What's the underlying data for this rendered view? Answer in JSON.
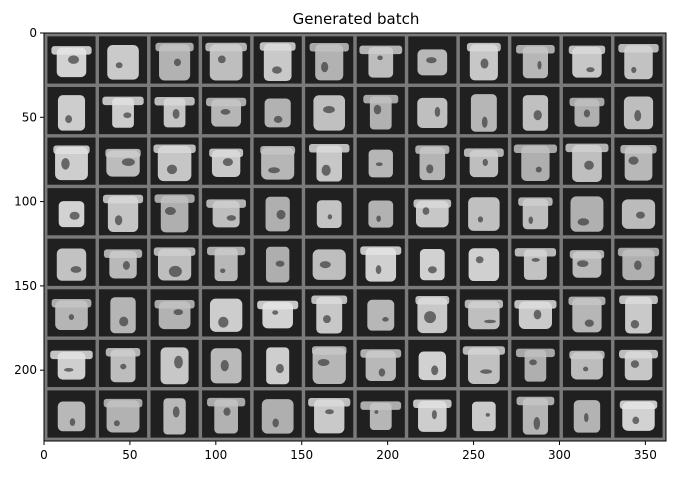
{
  "title": "Generated batch",
  "image": {
    "description_grid_rows": 8,
    "description_grid_cols": 12,
    "tile_pixel_size": 28,
    "padding": 2,
    "separator_color": "#7a7a7a",
    "tile_background": "#202020",
    "figure_color": "#d8d8d8"
  },
  "axes": {
    "xlim": [
      0,
      362
    ],
    "ylim": [
      242,
      0
    ],
    "x_ticks": [
      0,
      50,
      100,
      150,
      200,
      250,
      300,
      350
    ],
    "y_ticks": [
      0,
      50,
      100,
      150,
      200
    ],
    "x_tick_labels": [
      "0",
      "50",
      "100",
      "150",
      "200",
      "250",
      "300",
      "350"
    ],
    "y_tick_labels": [
      "0",
      "50",
      "100",
      "150",
      "200"
    ]
  },
  "colors": {
    "axis": "#000000",
    "background": "#ffffff"
  }
}
